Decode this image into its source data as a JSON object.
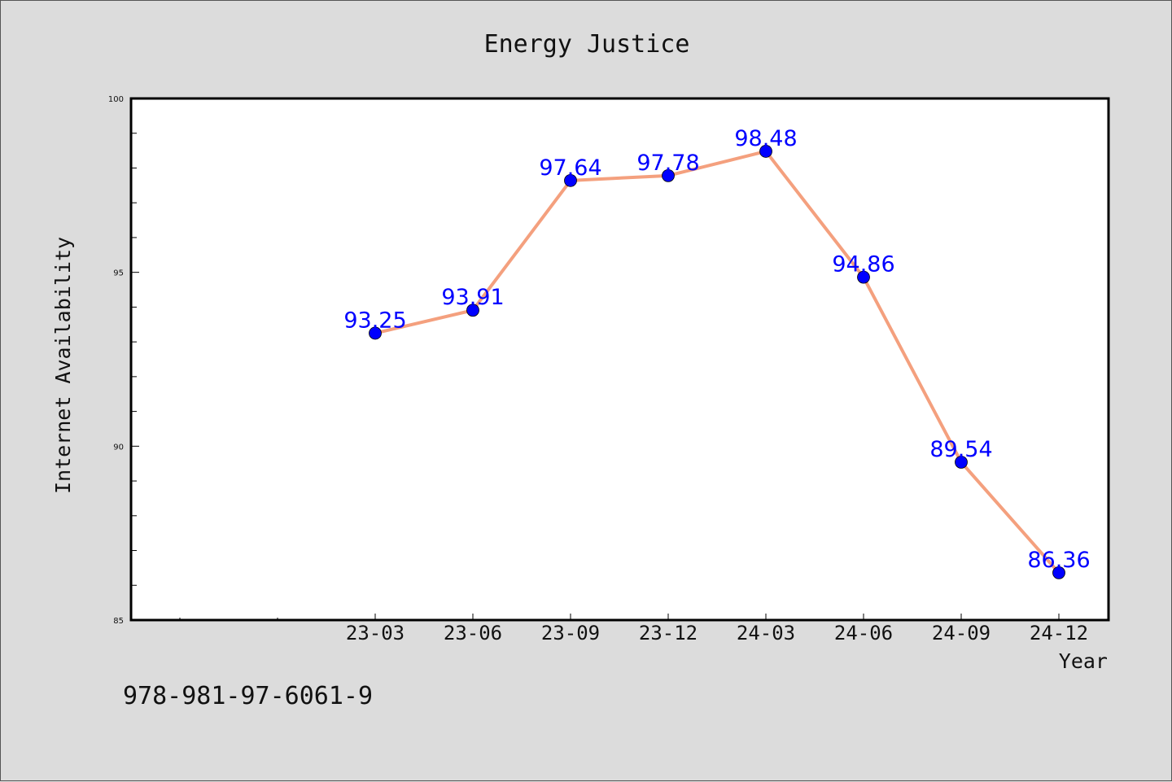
{
  "chart_data": {
    "type": "line",
    "title": "Energy Justice",
    "xlabel": "Year",
    "ylabel": "Internet Availability",
    "categories": [
      "23-03",
      "23-06",
      "23-09",
      "23-12",
      "24-03",
      "24-06",
      "24-09",
      "24-12"
    ],
    "series": [
      {
        "values": [
          93.25,
          93.91,
          97.64,
          97.78,
          98.48,
          94.86,
          89.54,
          86.36
        ],
        "line_color": "#f4a07e",
        "marker_color": "#0000ff"
      }
    ],
    "data_labels": [
      "93.25",
      "93.91",
      "97.64",
      "97.78",
      "98.48",
      "94.86",
      "89.54",
      "86.36"
    ],
    "ylim": [
      85,
      100
    ],
    "y_ticks": [
      "85",
      "90",
      "95",
      "100"
    ],
    "grid": false
  },
  "footer": {
    "isbn": "978-981-97-6061-9"
  },
  "colors": {
    "background": "#dcdcdc",
    "plot_background": "#ffffff",
    "line": "#f4a07e",
    "marker": "#0000ff",
    "label": "#0000ff"
  }
}
